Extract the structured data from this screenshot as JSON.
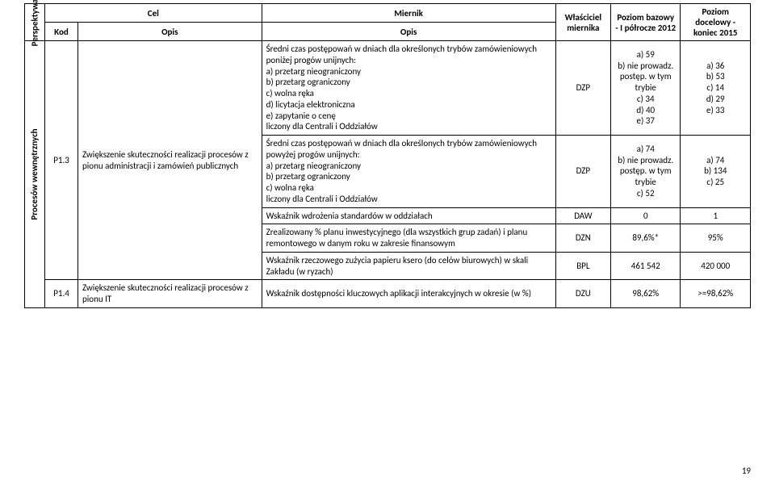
{
  "headers": {
    "perspektywa": "Perspektywa",
    "cel": "Cel",
    "miernik": "Miernik",
    "kod": "Kod",
    "opis": "Opis",
    "wlasciciel": "Właściciel miernika",
    "bazowy": "Poziom bazowy - I półrocze 2012",
    "docelowy": "Poziom docelowy - koniec 2015"
  },
  "perspektywa_label": "Procesów wewnętrznych",
  "rows": [
    {
      "kod": "P1.3",
      "cel": "Zwiększenie skuteczności realizacji procesów z pionu administracji i zamówień publicznych",
      "miernik": "Średni czas postępowań w dniach dla określonych trybów zamówieniowych poniżej progów unijnych:\na) przetarg nieograniczony\nb) przetarg ograniczony\nc) wolna ręka\nd) licytacja elektroniczna\ne) zapytanie o cenę\nliczony dla Centrali i Oddziałów",
      "wlas": "DZP",
      "baz": "a) 59\nb) nie prowadz. postęp. w tym trybie\nc) 34\nd) 40\ne) 37",
      "doc": "a) 36\nb) 53\nc) 14\nd) 29\ne) 33"
    },
    {
      "miernik": "Średni czas postępowań w dniach dla określonych trybów zamówieniowych powyżej progów unijnych:\na) przetarg nieograniczony\nb) przetarg ograniczony\nc) wolna ręka\nliczony dla Centrali i Oddziałów",
      "wlas": "DZP",
      "baz": "a) 74\nb) nie prowadz. postęp. w tym trybie\nc) 52",
      "doc": "a) 74\nb) 134\nc) 25"
    },
    {
      "miernik": "Wskaźnik wdrożenia standardów w oddziałach",
      "wlas": "DAW",
      "baz": "0",
      "doc": "1"
    },
    {
      "miernik": "Zrealizowany % planu inwestycyjnego (dla wszystkich grup zadań) i planu remontowego w danym roku w zakresie finansowym",
      "wlas": "DZN",
      "baz": "89,6%*",
      "doc": "95%"
    },
    {
      "miernik": "Wskaźnik rzeczowego zużycia papieru ksero (do celów biurowych) w skali Zakładu (w ryzach)",
      "wlas": "BPL",
      "baz": "461 542",
      "doc": "420 000"
    },
    {
      "kod": "P1.4",
      "cel": "Zwiększenie skuteczności realizacji procesów z pionu IT",
      "miernik": "Wskaźnik dostępności kluczowych aplikacji interakcyjnych w okresie (w %)",
      "wlas": "DZU",
      "baz": "98,62%",
      "doc": ">=98,62%"
    }
  ],
  "page_number": "19"
}
